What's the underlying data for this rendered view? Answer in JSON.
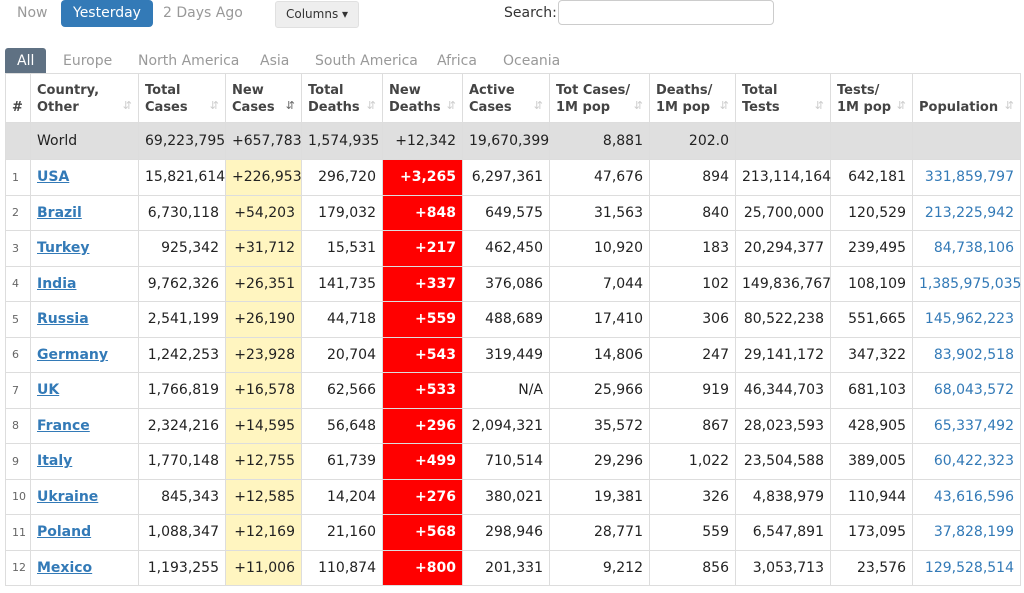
{
  "day_tabs": [
    {
      "label": "Now"
    },
    {
      "label": "Yesterday"
    },
    {
      "label": "2 Days Ago"
    }
  ],
  "columns_button": "Columns ▾",
  "search": {
    "label": "Search:",
    "value": "",
    "placeholder": ""
  },
  "region_tabs": [
    {
      "label": "All"
    },
    {
      "label": "Europe"
    },
    {
      "label": "North America"
    },
    {
      "label": "Asia"
    },
    {
      "label": "South America"
    },
    {
      "label": "Africa"
    },
    {
      "label": "Oceania"
    }
  ],
  "headers": [
    "#",
    "Country,\nOther",
    "Total\nCases",
    "New\nCases",
    "Total\nDeaths",
    "New\nDeaths",
    "Active\nCases",
    "Tot Cases/\n1M pop",
    "Deaths/\n1M pop",
    "Total\nTests",
    "Tests/\n1M pop",
    "Population"
  ],
  "sort_icons": {
    "inactive": "⇵",
    "active": "⇵"
  },
  "world_row": [
    "",
    "World",
    "69,223,795",
    "+657,783",
    "1,574,935",
    "+12,342",
    "19,670,399",
    "8,881",
    "202.0",
    "",
    "",
    ""
  ],
  "rows": [
    [
      "1",
      "USA",
      "15,821,614",
      "+226,953",
      "296,720",
      "+3,265",
      "6,297,361",
      "47,676",
      "894",
      "213,114,164",
      "642,181",
      "331,859,797"
    ],
    [
      "2",
      "Brazil",
      "6,730,118",
      "+54,203",
      "179,032",
      "+848",
      "649,575",
      "31,563",
      "840",
      "25,700,000",
      "120,529",
      "213,225,942"
    ],
    [
      "3",
      "Turkey",
      "925,342",
      "+31,712",
      "15,531",
      "+217",
      "462,450",
      "10,920",
      "183",
      "20,294,377",
      "239,495",
      "84,738,106"
    ],
    [
      "4",
      "India",
      "9,762,326",
      "+26,351",
      "141,735",
      "+337",
      "376,086",
      "7,044",
      "102",
      "149,836,767",
      "108,109",
      "1,385,975,035"
    ],
    [
      "5",
      "Russia",
      "2,541,199",
      "+26,190",
      "44,718",
      "+559",
      "488,689",
      "17,410",
      "306",
      "80,522,238",
      "551,665",
      "145,962,223"
    ],
    [
      "6",
      "Germany",
      "1,242,253",
      "+23,928",
      "20,704",
      "+543",
      "319,449",
      "14,806",
      "247",
      "29,141,172",
      "347,322",
      "83,902,518"
    ],
    [
      "7",
      "UK",
      "1,766,819",
      "+16,578",
      "62,566",
      "+533",
      "N/A",
      "25,966",
      "919",
      "46,344,703",
      "681,103",
      "68,043,572"
    ],
    [
      "8",
      "France",
      "2,324,216",
      "+14,595",
      "56,648",
      "+296",
      "2,094,321",
      "35,572",
      "867",
      "28,023,593",
      "428,905",
      "65,337,492"
    ],
    [
      "9",
      "Italy",
      "1,770,148",
      "+12,755",
      "61,739",
      "+499",
      "710,514",
      "29,296",
      "1,022",
      "23,504,588",
      "389,005",
      "60,422,323"
    ],
    [
      "10",
      "Ukraine",
      "845,343",
      "+12,585",
      "14,204",
      "+276",
      "380,021",
      "19,381",
      "326",
      "4,838,979",
      "110,944",
      "43,616,596"
    ],
    [
      "11",
      "Poland",
      "1,088,347",
      "+12,169",
      "21,160",
      "+568",
      "298,946",
      "28,771",
      "559",
      "6,547,891",
      "173,095",
      "37,828,199"
    ],
    [
      "12",
      "Mexico",
      "1,193,255",
      "+11,006",
      "110,874",
      "+800",
      "201,331",
      "9,212",
      "856",
      "3,053,713",
      "23,576",
      "129,528,514"
    ]
  ],
  "colors": {
    "accent": "#337ab7",
    "new_cases_bg": "#fff5c0",
    "new_deaths_bg": "#ff0000",
    "world_bg": "#dfdfdf",
    "all_tab_bg": "#5f7183"
  }
}
